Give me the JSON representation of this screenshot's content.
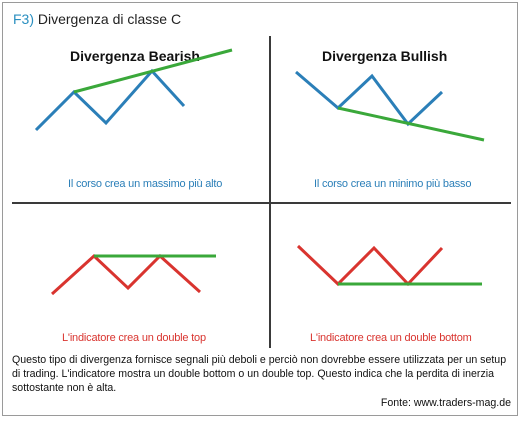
{
  "header": {
    "code": "F3)",
    "title": "Divergenza di classe C"
  },
  "panels": {
    "top_left": {
      "title": "Divergenza Bearish",
      "caption": "Il corso crea un massimo più alto"
    },
    "top_right": {
      "title": "Divergenza Bullish",
      "caption": "Il corso crea un minimo più basso"
    },
    "bottom_left": {
      "caption": "L'indicatore crea un double top"
    },
    "bottom_right": {
      "caption": "L'indicatore crea un double bottom"
    }
  },
  "description": "Questo tipo di divergenza fornisce segnali più deboli e perciò non dovrebbe essere utilizzata per un setup di trading. L'indicatore mostra un double bottom o un double top. Questo indica che la perdita di inerzia sottostante non è alta.",
  "source": "Fonte: www.traders-mag.de",
  "colors": {
    "price": "#2b7fb8",
    "indicator": "#d9342f",
    "trendline": "#3aa83a",
    "code": "#2a8fc0"
  }
}
